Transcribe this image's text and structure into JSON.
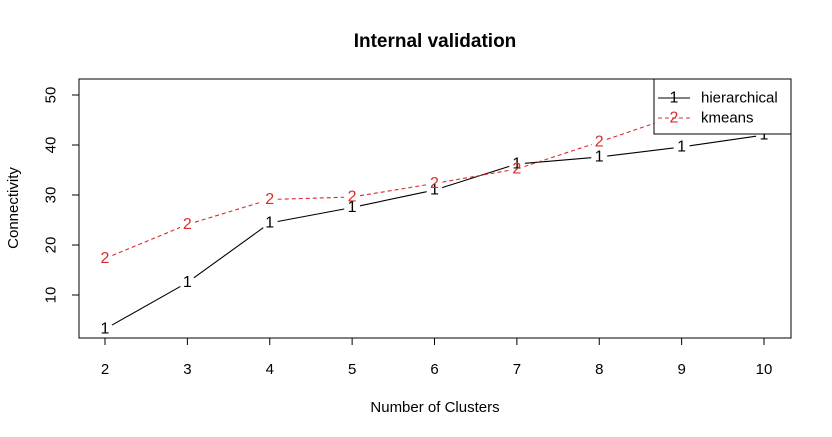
{
  "chart_data": {
    "type": "line",
    "title": "Internal validation",
    "xlabel": "Number of Clusters",
    "ylabel": "Connectivity",
    "x": [
      2,
      3,
      4,
      5,
      6,
      7,
      8,
      9,
      10
    ],
    "xlim": [
      2,
      10
    ],
    "ylim": [
      0,
      50
    ],
    "yticks": [
      10,
      20,
      30,
      40,
      50
    ],
    "grid": false,
    "legend_position": "top-right",
    "series": [
      {
        "name": "hierarchical",
        "marker": "1",
        "color": "#000000",
        "line_style": "solid",
        "values": [
          3.2,
          12.5,
          24.4,
          27.5,
          31.0,
          36.2,
          37.6,
          39.6,
          42.0
        ]
      },
      {
        "name": "kmeans",
        "marker": "2",
        "color": "#df2a2a",
        "line_style": "dashed",
        "values": [
          17.3,
          24.1,
          29.1,
          29.6,
          32.3,
          35.2,
          40.6,
          46.2,
          49.5
        ]
      }
    ]
  }
}
